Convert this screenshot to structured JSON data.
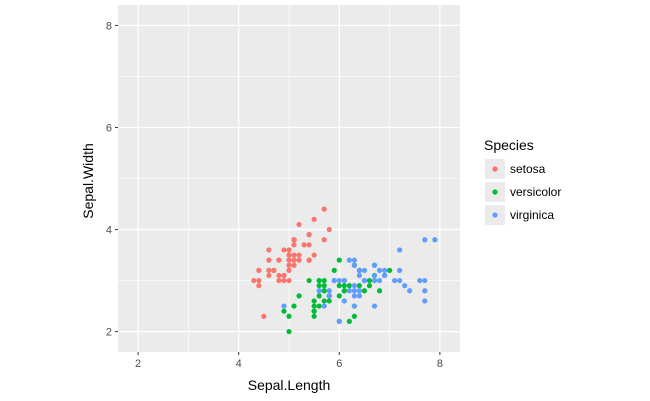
{
  "chart_data": {
    "type": "scatter",
    "xlabel": "Sepal.Length",
    "ylabel": "Sepal.Width",
    "xlim": [
      1.6,
      8.4
    ],
    "ylim": [
      1.6,
      8.4
    ],
    "x_ticks": [
      2,
      4,
      6,
      8
    ],
    "y_ticks": [
      2,
      4,
      6,
      8
    ],
    "x_tick_labels": [
      "2",
      "4",
      "6",
      "8"
    ],
    "y_tick_labels": [
      "2",
      "4",
      "6",
      "8"
    ],
    "grid": true,
    "background_color": "#EBEBEB",
    "gridline_color": "#FFFFFF",
    "legend": {
      "title": "Species",
      "position": "right"
    },
    "series": [
      {
        "name": "setosa",
        "color": "#F8766D",
        "points": [
          [
            5.1,
            3.5
          ],
          [
            4.9,
            3.0
          ],
          [
            4.7,
            3.2
          ],
          [
            4.6,
            3.1
          ],
          [
            5.0,
            3.6
          ],
          [
            5.4,
            3.9
          ],
          [
            4.6,
            3.4
          ],
          [
            5.0,
            3.4
          ],
          [
            4.4,
            2.9
          ],
          [
            4.9,
            3.1
          ],
          [
            5.4,
            3.7
          ],
          [
            4.8,
            3.4
          ],
          [
            4.8,
            3.0
          ],
          [
            4.3,
            3.0
          ],
          [
            5.8,
            4.0
          ],
          [
            5.7,
            4.4
          ],
          [
            5.4,
            3.9
          ],
          [
            5.1,
            3.5
          ],
          [
            5.7,
            3.8
          ],
          [
            5.1,
            3.8
          ],
          [
            5.4,
            3.4
          ],
          [
            5.1,
            3.7
          ],
          [
            4.6,
            3.6
          ],
          [
            5.1,
            3.3
          ],
          [
            4.8,
            3.4
          ],
          [
            5.0,
            3.0
          ],
          [
            5.0,
            3.4
          ],
          [
            5.2,
            3.5
          ],
          [
            5.2,
            3.4
          ],
          [
            4.7,
            3.2
          ],
          [
            4.8,
            3.1
          ],
          [
            5.4,
            3.4
          ],
          [
            5.2,
            4.1
          ],
          [
            5.5,
            4.2
          ],
          [
            4.9,
            3.1
          ],
          [
            5.0,
            3.2
          ],
          [
            5.5,
            3.5
          ],
          [
            4.9,
            3.6
          ],
          [
            4.4,
            3.0
          ],
          [
            5.1,
            3.4
          ],
          [
            5.0,
            3.5
          ],
          [
            4.5,
            2.3
          ],
          [
            4.4,
            3.2
          ],
          [
            5.0,
            3.5
          ],
          [
            5.1,
            3.8
          ],
          [
            4.8,
            3.0
          ],
          [
            5.1,
            3.8
          ],
          [
            4.6,
            3.2
          ],
          [
            5.3,
            3.7
          ],
          [
            5.0,
            3.3
          ]
        ]
      },
      {
        "name": "versicolor",
        "color": "#00BA38",
        "points": [
          [
            7.0,
            3.2
          ],
          [
            6.4,
            3.2
          ],
          [
            6.9,
            3.1
          ],
          [
            5.5,
            2.3
          ],
          [
            6.5,
            2.8
          ],
          [
            5.7,
            2.8
          ],
          [
            6.3,
            3.3
          ],
          [
            4.9,
            2.4
          ],
          [
            6.6,
            2.9
          ],
          [
            5.2,
            2.7
          ],
          [
            5.0,
            2.0
          ],
          [
            5.9,
            3.0
          ],
          [
            6.0,
            2.2
          ],
          [
            6.1,
            2.9
          ],
          [
            5.6,
            2.9
          ],
          [
            6.7,
            3.1
          ],
          [
            5.6,
            3.0
          ],
          [
            5.8,
            2.7
          ],
          [
            6.2,
            2.2
          ],
          [
            5.6,
            2.5
          ],
          [
            5.9,
            3.2
          ],
          [
            6.1,
            2.8
          ],
          [
            6.3,
            2.5
          ],
          [
            6.1,
            2.8
          ],
          [
            6.4,
            2.9
          ],
          [
            6.6,
            3.0
          ],
          [
            6.8,
            2.8
          ],
          [
            6.7,
            3.0
          ],
          [
            6.0,
            2.9
          ],
          [
            5.7,
            2.6
          ],
          [
            5.5,
            2.4
          ],
          [
            5.5,
            2.4
          ],
          [
            5.8,
            2.7
          ],
          [
            6.0,
            2.7
          ],
          [
            5.4,
            3.0
          ],
          [
            6.0,
            3.4
          ],
          [
            6.7,
            3.1
          ],
          [
            6.3,
            2.3
          ],
          [
            5.6,
            3.0
          ],
          [
            5.5,
            2.5
          ],
          [
            5.5,
            2.6
          ],
          [
            6.1,
            3.0
          ],
          [
            5.8,
            2.6
          ],
          [
            5.0,
            2.3
          ],
          [
            5.6,
            2.7
          ],
          [
            5.7,
            3.0
          ],
          [
            5.7,
            2.9
          ],
          [
            6.2,
            2.9
          ],
          [
            5.1,
            2.5
          ],
          [
            5.7,
            2.8
          ]
        ]
      },
      {
        "name": "virginica",
        "color": "#619CFF",
        "points": [
          [
            6.3,
            3.3
          ],
          [
            5.8,
            2.7
          ],
          [
            7.1,
            3.0
          ],
          [
            6.3,
            2.9
          ],
          [
            6.5,
            3.0
          ],
          [
            7.6,
            3.0
          ],
          [
            4.9,
            2.5
          ],
          [
            7.3,
            2.9
          ],
          [
            6.7,
            2.5
          ],
          [
            7.2,
            3.6
          ],
          [
            6.5,
            3.2
          ],
          [
            6.4,
            2.7
          ],
          [
            6.8,
            3.0
          ],
          [
            5.7,
            2.5
          ],
          [
            5.8,
            2.8
          ],
          [
            6.4,
            3.2
          ],
          [
            6.5,
            3.0
          ],
          [
            7.7,
            3.8
          ],
          [
            7.7,
            2.6
          ],
          [
            6.0,
            2.2
          ],
          [
            6.9,
            3.2
          ],
          [
            5.6,
            2.8
          ],
          [
            7.7,
            2.8
          ],
          [
            6.3,
            2.7
          ],
          [
            6.7,
            3.3
          ],
          [
            7.2,
            3.2
          ],
          [
            6.2,
            2.8
          ],
          [
            6.1,
            3.0
          ],
          [
            6.4,
            2.8
          ],
          [
            7.2,
            3.0
          ],
          [
            7.4,
            2.8
          ],
          [
            7.9,
            3.8
          ],
          [
            6.4,
            2.8
          ],
          [
            6.3,
            2.8
          ],
          [
            6.1,
            2.6
          ],
          [
            7.7,
            3.0
          ],
          [
            6.3,
            3.4
          ],
          [
            6.4,
            3.1
          ],
          [
            6.0,
            3.0
          ],
          [
            6.9,
            3.1
          ],
          [
            6.7,
            3.1
          ],
          [
            6.9,
            3.1
          ],
          [
            5.8,
            2.7
          ],
          [
            6.8,
            3.2
          ],
          [
            6.7,
            3.3
          ],
          [
            6.7,
            3.0
          ],
          [
            6.3,
            2.5
          ],
          [
            6.5,
            3.0
          ],
          [
            6.2,
            3.4
          ],
          [
            5.9,
            3.0
          ]
        ]
      }
    ]
  }
}
